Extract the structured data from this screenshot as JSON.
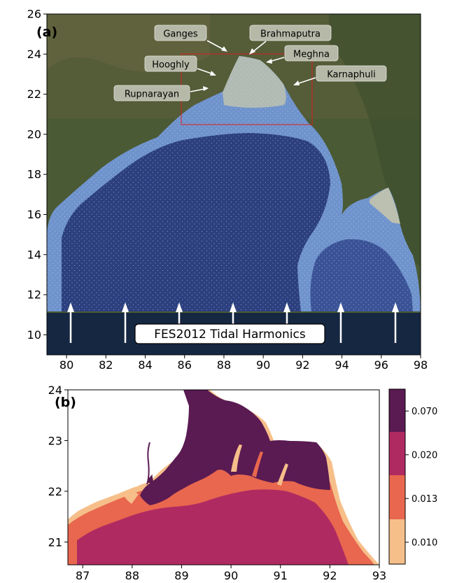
{
  "panel_a": {
    "label": "(a)",
    "x_ticks": [
      "80",
      "82",
      "84",
      "86",
      "88",
      "90",
      "92",
      "94",
      "96",
      "98"
    ],
    "y_ticks": [
      "10",
      "12",
      "14",
      "16",
      "18",
      "20",
      "22",
      "24",
      "26"
    ],
    "boundary_label": "FES2012 Tidal Harmonics",
    "rivers": [
      {
        "name": "Ganges"
      },
      {
        "name": "Brahmaputra"
      },
      {
        "name": "Meghna"
      },
      {
        "name": "Hooghly"
      },
      {
        "name": "Karnaphuli"
      },
      {
        "name": "Rupnarayan"
      }
    ],
    "colors": {
      "land": "#4a5a35",
      "ocean": "#2c3f7e",
      "shelf": "#6f93cc",
      "box": "#d62020",
      "boundary_band": "#0d1e44"
    }
  },
  "panel_b": {
    "label": "(b)",
    "x_ticks": [
      "87",
      "88",
      "89",
      "90",
      "91",
      "92",
      "93"
    ],
    "y_ticks": [
      "21",
      "22",
      "23",
      "24"
    ],
    "colorbar": {
      "ticks": [
        "0.070",
        "0.020",
        "0.013",
        "0.010"
      ],
      "colors": [
        "#5a1a52",
        "#b02a62",
        "#e8674e",
        "#f6bf8a"
      ]
    }
  }
}
